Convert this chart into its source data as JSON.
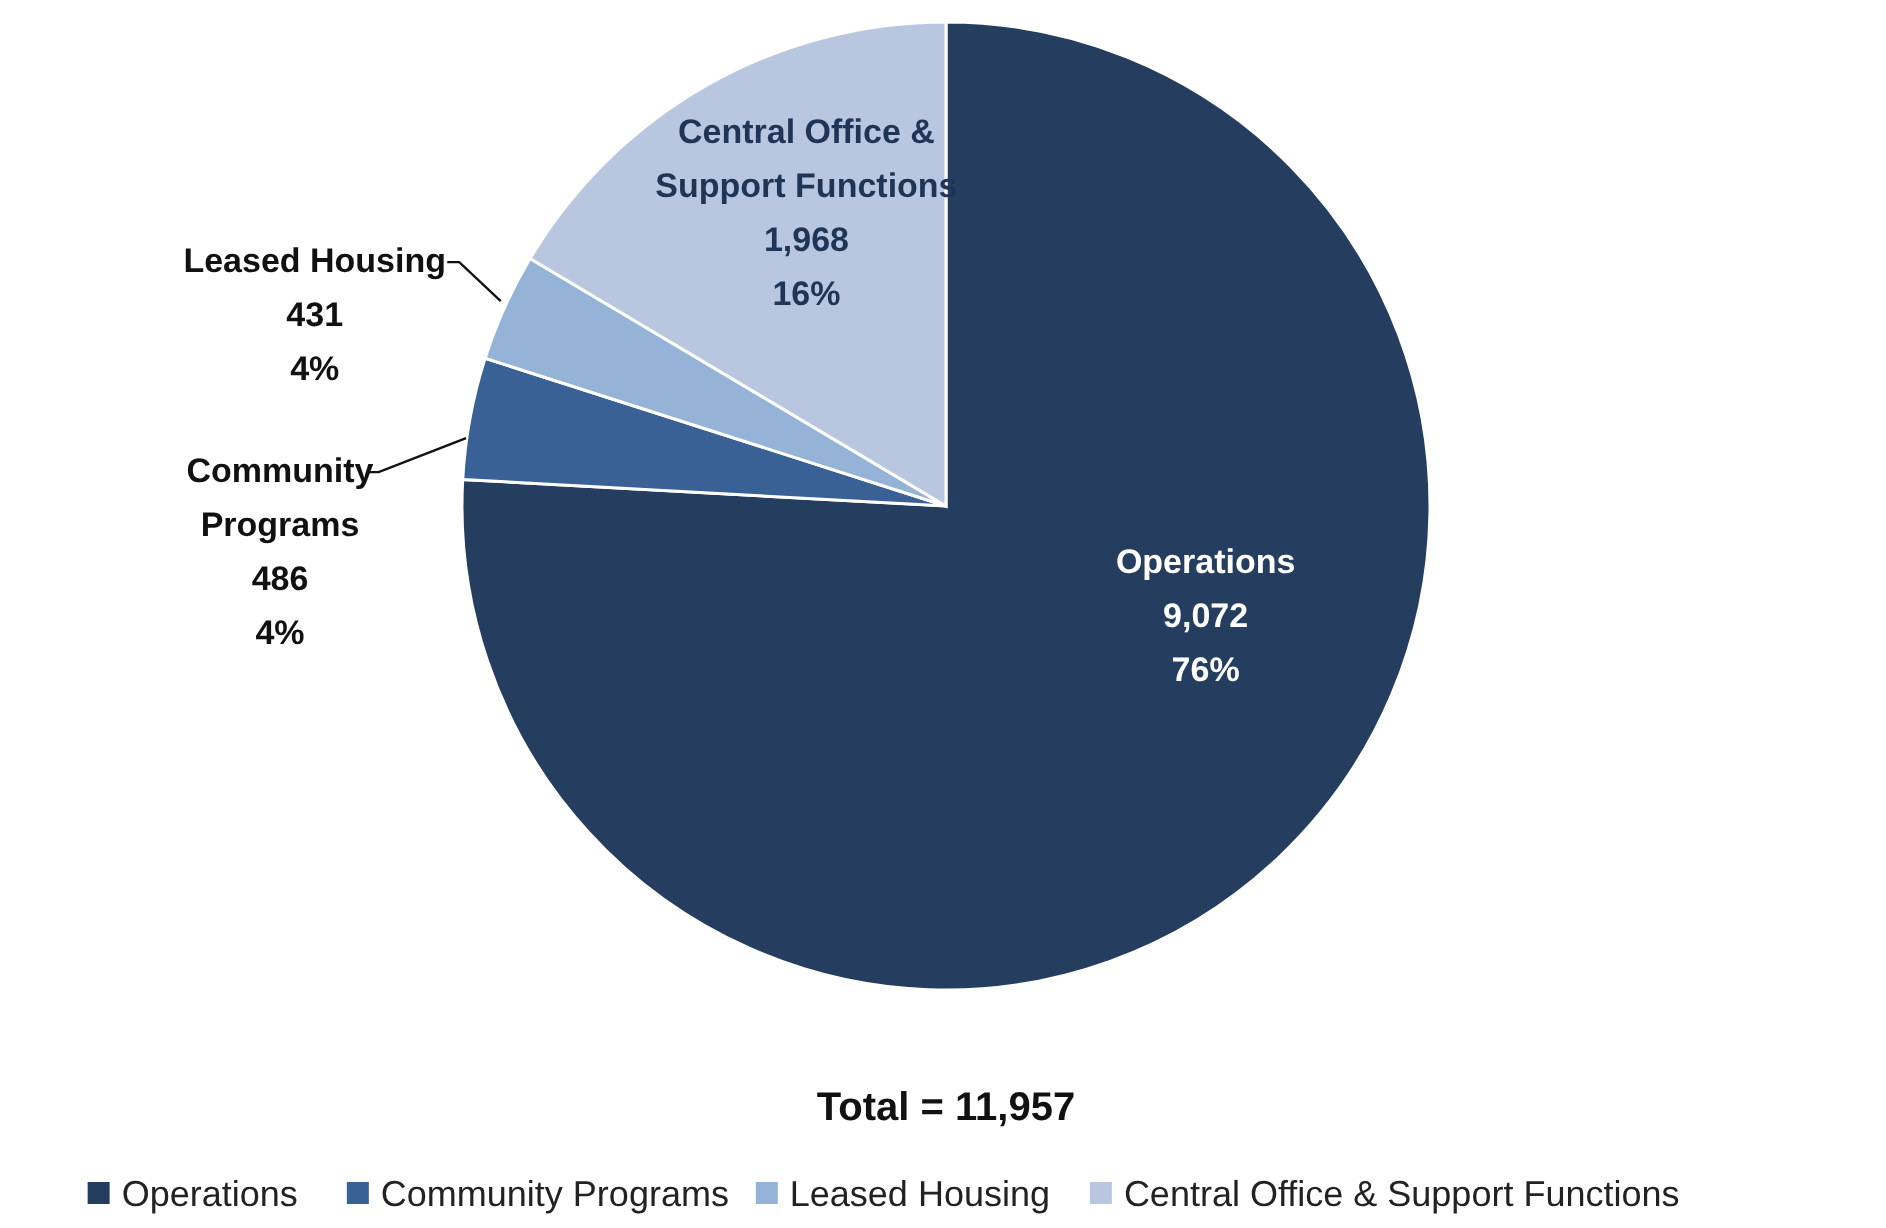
{
  "chart_data": {
    "type": "pie",
    "categories": [
      "Operations",
      "Community Programs",
      "Leased Housing",
      "Central Office & Support Functions"
    ],
    "values": [
      9072,
      486,
      431,
      1968
    ],
    "value_labels": [
      "9,072\n76%",
      "486\n4%",
      "431\n4%",
      "1,968\n16%"
    ],
    "colors": [
      "#253d5e",
      "#3a6195",
      "#95b3d7",
      "#b9c6df"
    ],
    "annotations": [
      "Total = 11,957"
    ],
    "legend": "bottom"
  }
}
